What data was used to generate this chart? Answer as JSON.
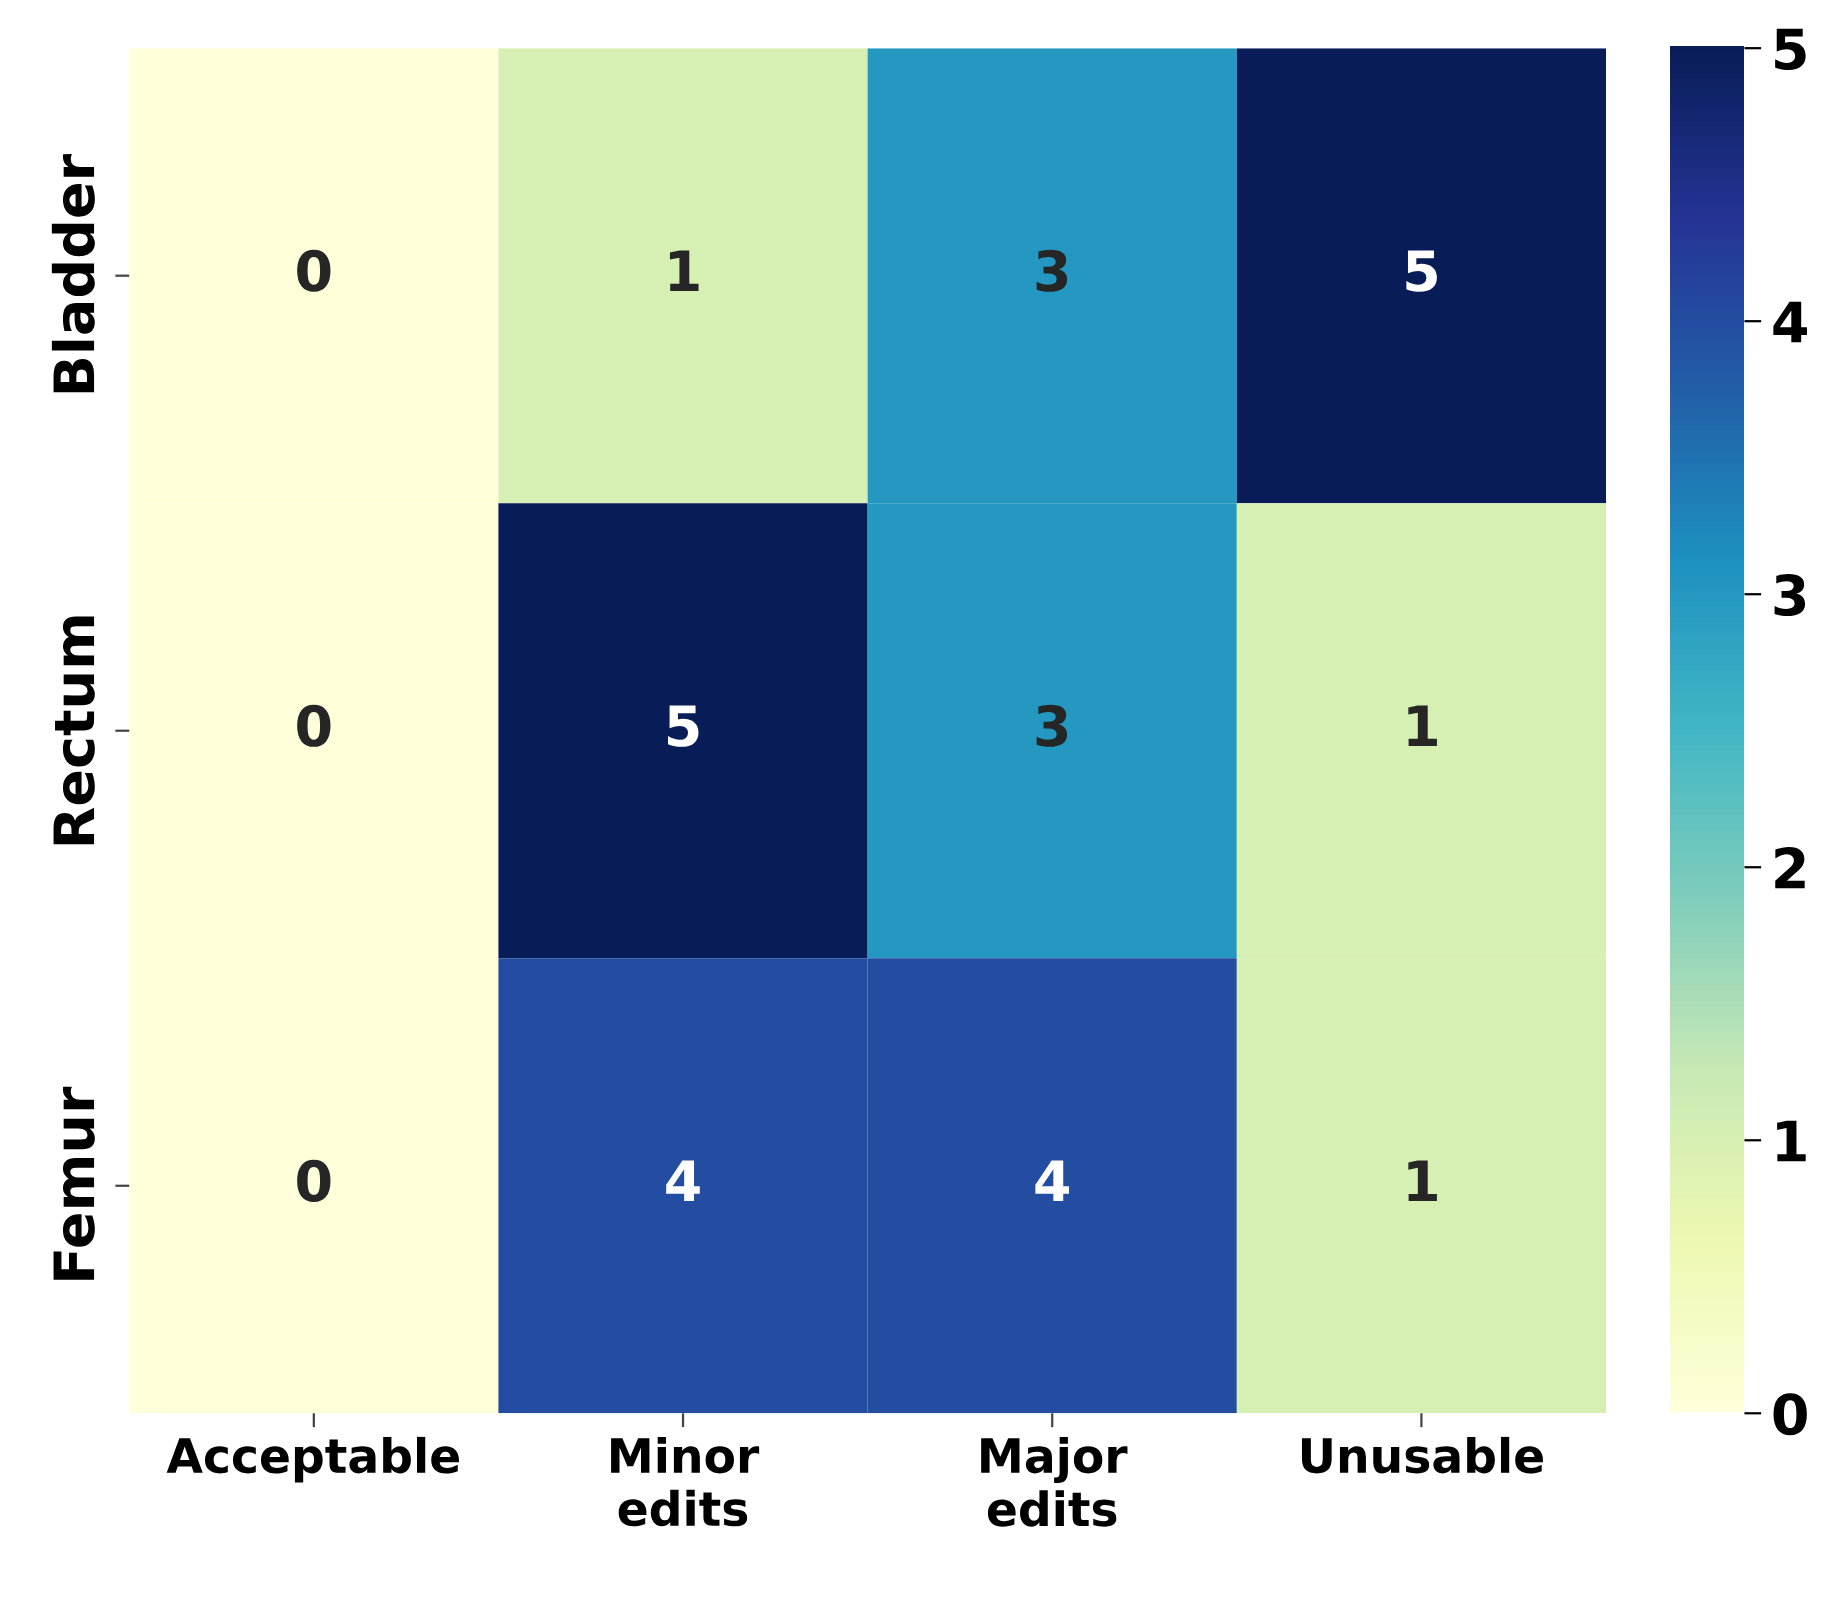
{
  "chart_data": {
    "type": "heatmap",
    "categories": [
      "Acceptable",
      "Minor\nedits",
      "Major\nedits",
      "Unusable"
    ],
    "y_categories": [
      "Bladder",
      "Rectum",
      "Femur"
    ],
    "cells": [
      [
        0,
        1,
        3,
        5
      ],
      [
        0,
        5,
        3,
        1
      ],
      [
        0,
        4,
        4,
        1
      ]
    ],
    "data_labels": true,
    "clim": [
      0,
      5
    ],
    "cticks": [
      0,
      1,
      2,
      3,
      4,
      5
    ]
  }
}
